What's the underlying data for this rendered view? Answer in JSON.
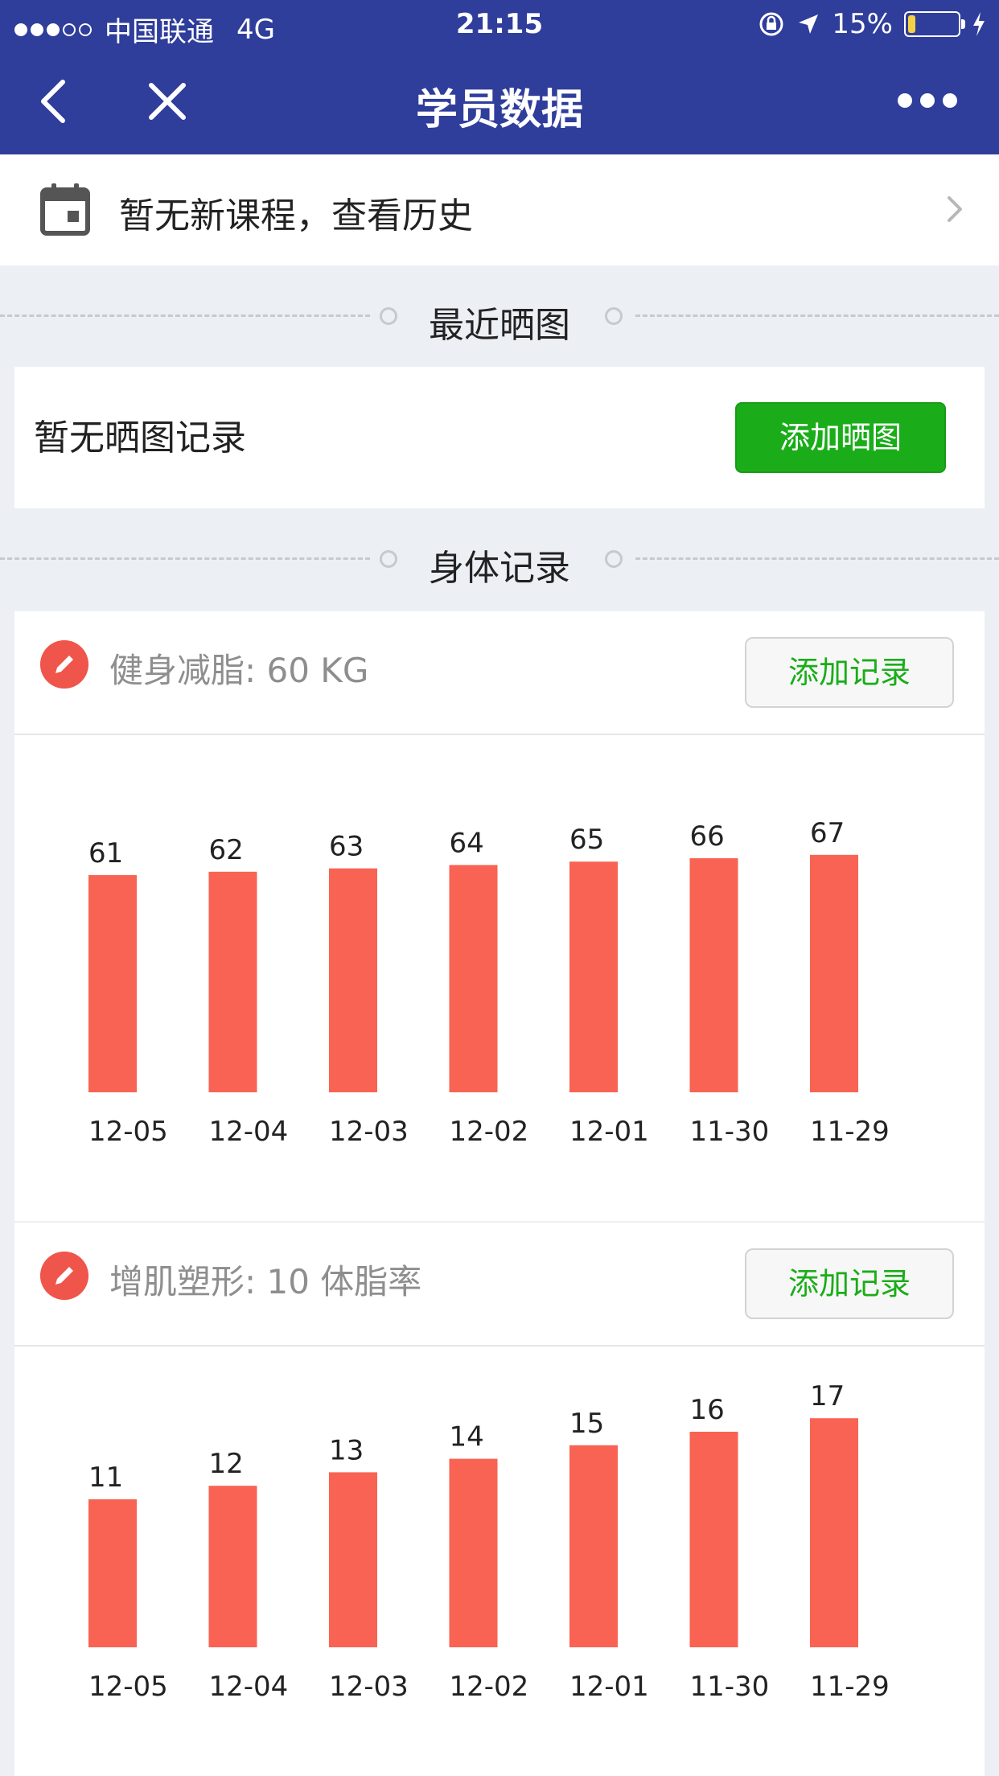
{
  "status_bar": {
    "carrier": "中国联通",
    "network": "4G",
    "time": "21:15",
    "battery": "15%",
    "battery_level": 0.15
  },
  "nav": {
    "title": "学员数据",
    "back_icon": "chevron-left-icon",
    "close_icon": "close-icon",
    "more_icon": "more-dots-icon"
  },
  "course": {
    "text": "暂无新课程，查看历史",
    "icon": "calendar-icon"
  },
  "photos_section": {
    "title": "最近晒图",
    "empty_text": "暂无晒图记录",
    "add_button": "添加晒图"
  },
  "body_section": {
    "title": "身体记录"
  },
  "records": [
    {
      "label": "健身减脂: 60 KG",
      "add_button": "添加记录"
    },
    {
      "label": "增肌塑形: 10 体脂率",
      "add_button": "添加记录"
    }
  ],
  "chart_data": [
    {
      "type": "bar",
      "categories": [
        "12-05",
        "12-04",
        "12-03",
        "12-02",
        "12-01",
        "11-30",
        "11-29"
      ],
      "values": [
        61,
        62,
        63,
        64,
        65,
        66,
        67
      ],
      "color": "#f96353"
    },
    {
      "type": "bar",
      "categories": [
        "12-05",
        "12-04",
        "12-03",
        "12-02",
        "12-01",
        "11-30",
        "11-29"
      ],
      "values": [
        11,
        12,
        13,
        14,
        15,
        16,
        17
      ],
      "color": "#f96353"
    }
  ]
}
